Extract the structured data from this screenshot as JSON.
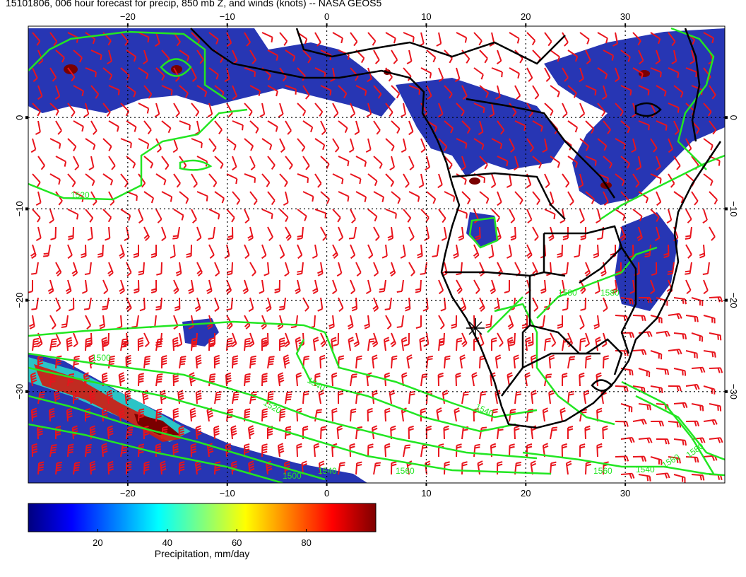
{
  "title": "15101806, 006 hour forecast for precip, 850 mb Z, and winds (knots) -- NASA GEOS5",
  "map": {
    "lon_range": [
      -30,
      40
    ],
    "lat_range": [
      -40,
      10
    ],
    "lon_ticks": [
      -20,
      -10,
      0,
      10,
      20,
      30
    ],
    "lon_tick_labels": [
      "−20",
      "−10",
      "0",
      "10",
      "20",
      "30"
    ],
    "lat_ticks": [
      0,
      -10,
      -20,
      -30
    ],
    "lat_tick_labels": [
      "0",
      "−10",
      "−20",
      "−30"
    ],
    "gridlines": "dotted",
    "colors": {
      "barb": "#e8141c",
      "contour": "#22e622",
      "coast": "#000000"
    }
  },
  "contour_labels": [
    "1500",
    "1520",
    "1540",
    "1540",
    "1500",
    "1540",
    "1560",
    "1580",
    "1520",
    "1580",
    "1560",
    "1540",
    "1560",
    "1580"
  ],
  "colorbar": {
    "ticks": [
      20,
      40,
      60,
      80
    ],
    "range": [
      0,
      100
    ],
    "label": "Precipitation, mm/day",
    "colors": [
      "#00007f",
      "#0000ff",
      "#007fff",
      "#00ffff",
      "#7fff7f",
      "#ffff00",
      "#ff7f00",
      "#ff0000",
      "#7f0000"
    ]
  }
}
